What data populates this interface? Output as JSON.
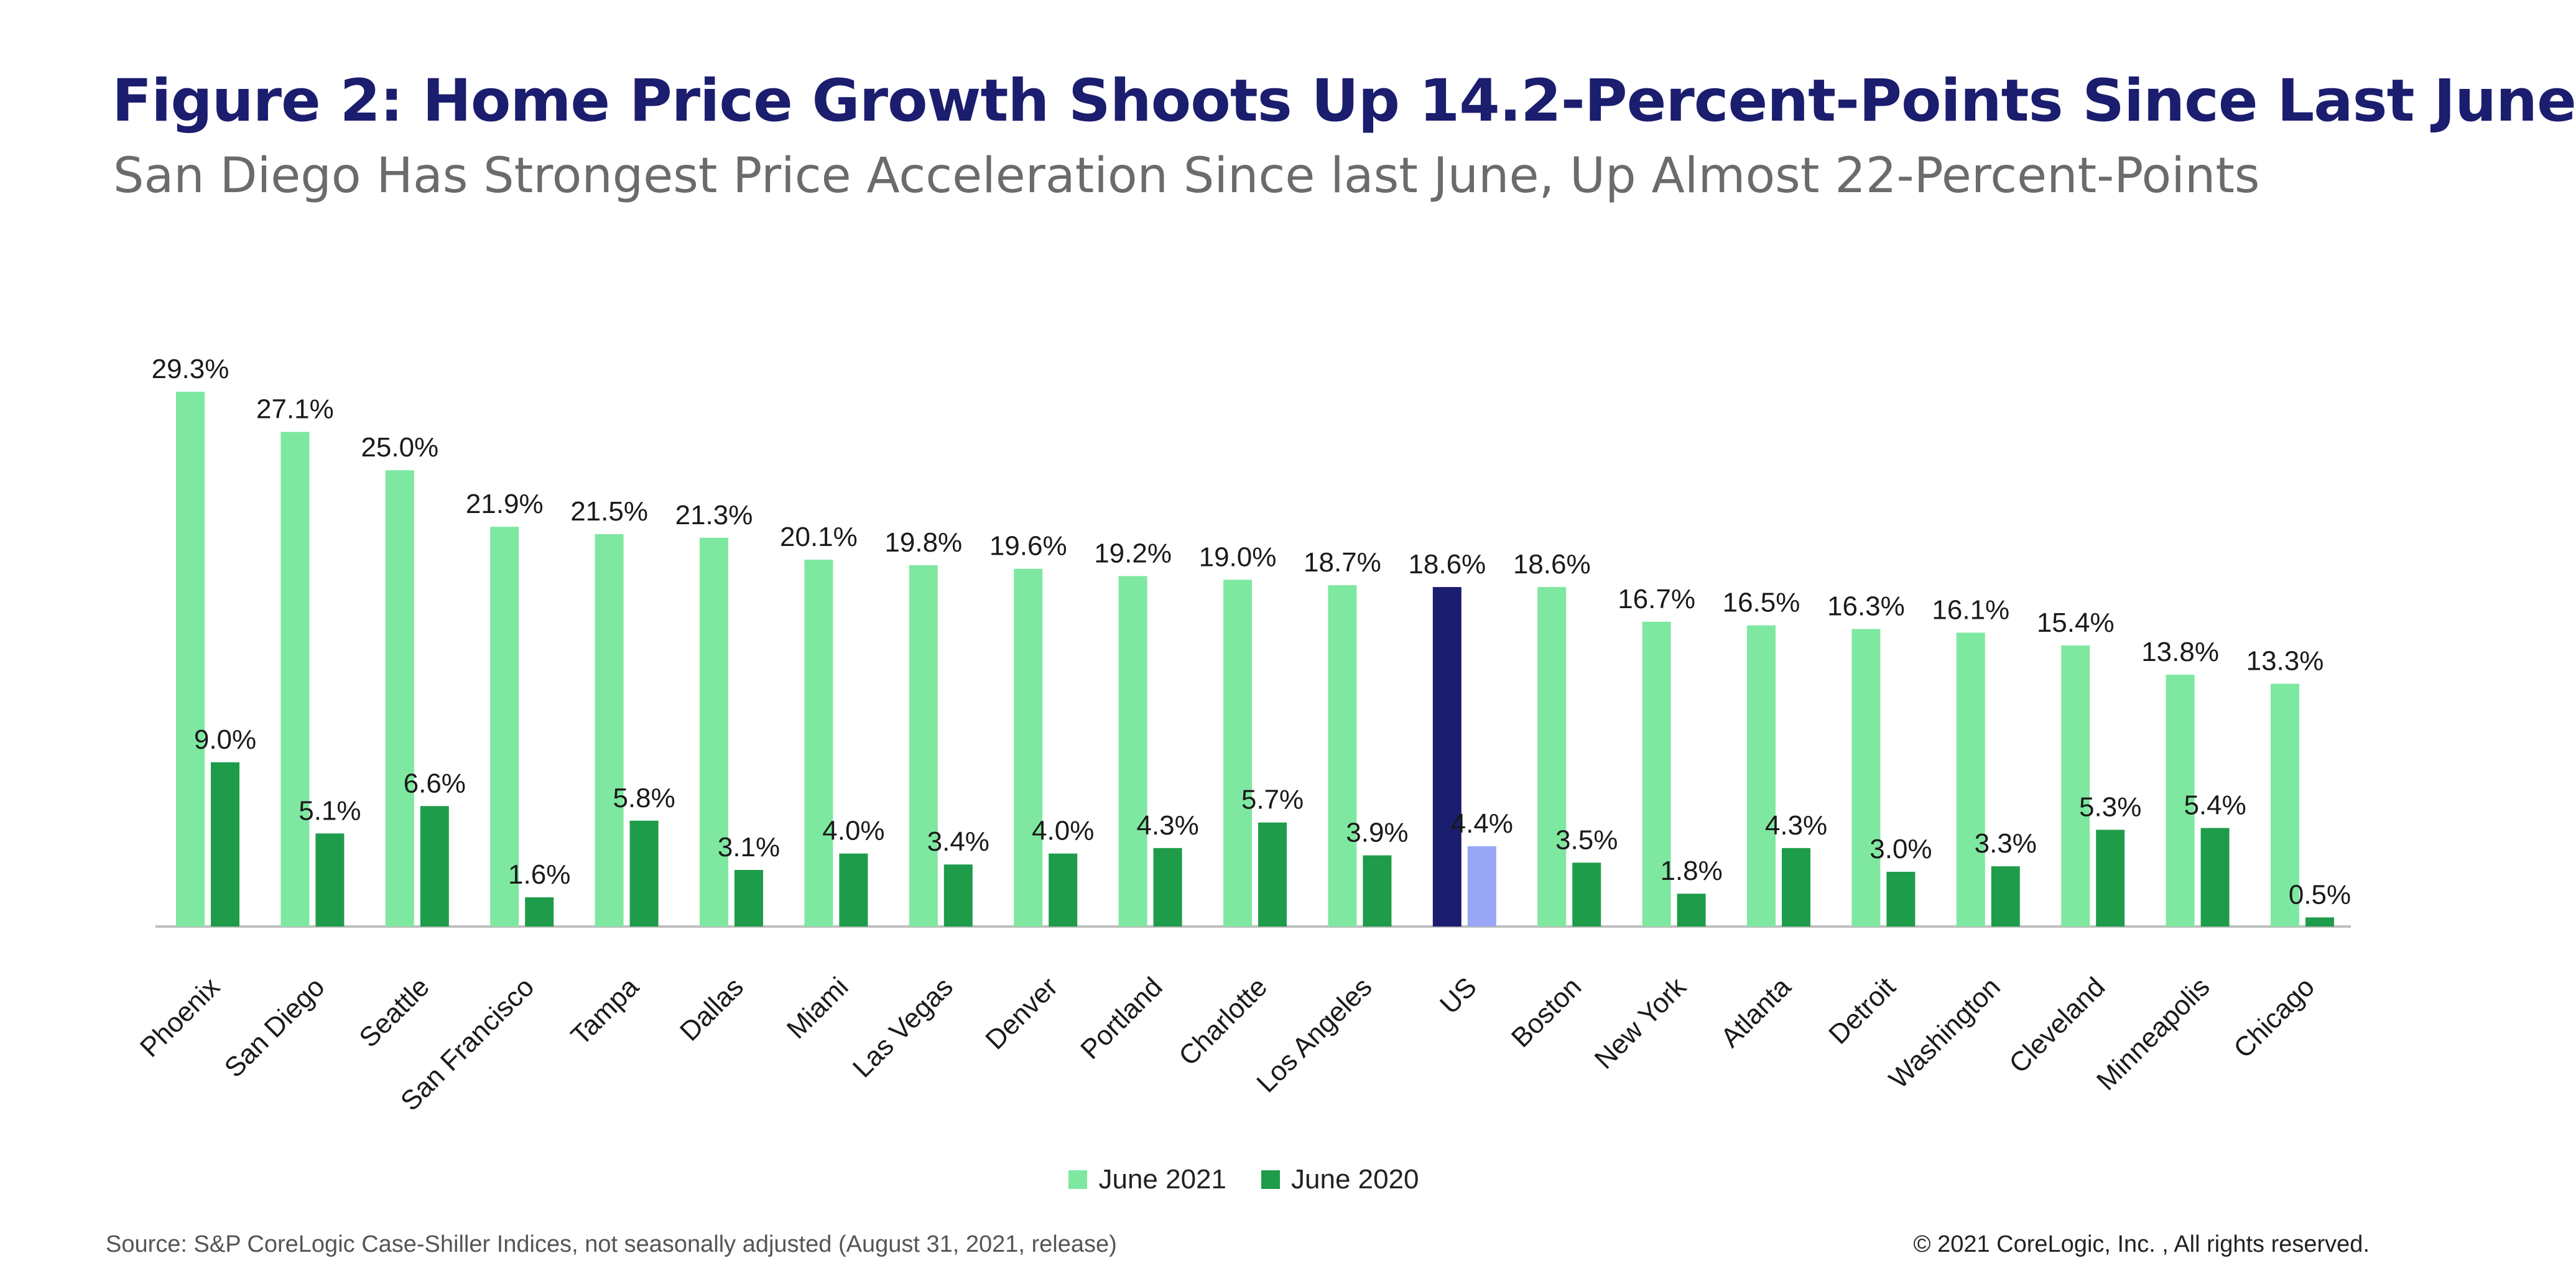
{
  "title": "Figure 2: Home Price Growth Shoots Up 14.2-Percent-Points Since Last June",
  "subtitle": "San Diego Has Strongest Price Acceleration Since last June, Up Almost 22-Percent-Points",
  "source": "Source:  S&P CoreLogic Case-Shiller Indices, not seasonally adjusted (August 31, 2021, release)",
  "copyright": "© 2021 CoreLogic, Inc. , All rights reserved.",
  "colors": {
    "june2021": "#7ee8a0",
    "june2020": "#1e9c4a",
    "us_june2021": "#1b1d6e",
    "us_june2020": "#98a6f5",
    "axis": "#bfbfbf"
  },
  "chart_data": {
    "type": "bar",
    "title": "Figure 2: Home Price Growth Shoots Up 14.2-Percent-Points Since Last June",
    "xlabel": "",
    "ylabel": "",
    "ylim": [
      0,
      29.3
    ],
    "grid": false,
    "legend_position": "bottom-center",
    "highlight_category": "US",
    "categories": [
      "Phoenix",
      "San Diego",
      "Seattle",
      "San Francisco",
      "Tampa",
      "Dallas",
      "Miami",
      "Las Vegas",
      "Denver",
      "Portland",
      "Charlotte",
      "Los Angeles",
      "US",
      "Boston",
      "New York",
      "Atlanta",
      "Detroit",
      "Washington",
      "Cleveland",
      "Minneapolis",
      "Chicago"
    ],
    "series": [
      {
        "name": "June 2021",
        "values": [
          29.3,
          27.1,
          25.0,
          21.9,
          21.5,
          21.3,
          20.1,
          19.8,
          19.6,
          19.2,
          19.0,
          18.7,
          18.6,
          18.6,
          16.7,
          16.5,
          16.3,
          16.1,
          15.4,
          13.8,
          13.3
        ],
        "labels": [
          "29.3%",
          "27.1%",
          "25.0%",
          "21.9%",
          "21.5%",
          "21.3%",
          "20.1%",
          "19.8%",
          "19.6%",
          "19.2%",
          "19.0%",
          "18.7%",
          "18.6%",
          "18.6%",
          "16.7%",
          "16.5%",
          "16.3%",
          "16.1%",
          "15.4%",
          "13.8%",
          "13.3%"
        ]
      },
      {
        "name": "June 2020",
        "values": [
          9.0,
          5.1,
          6.6,
          1.6,
          5.8,
          3.1,
          4.0,
          3.4,
          4.0,
          4.3,
          5.7,
          3.9,
          4.4,
          3.5,
          1.8,
          4.3,
          3.0,
          3.3,
          5.3,
          5.4,
          0.5
        ],
        "labels": [
          "9.0%",
          "5.1%",
          "6.6%",
          "1.6%",
          "5.8%",
          "3.1%",
          "4.0%",
          "3.4%",
          "4.0%",
          "4.3%",
          "5.7%",
          "3.9%",
          "4.4%",
          "3.5%",
          "1.8%",
          "4.3%",
          "3.0%",
          "3.3%",
          "5.3%",
          "5.4%",
          "0.5%"
        ]
      }
    ]
  }
}
